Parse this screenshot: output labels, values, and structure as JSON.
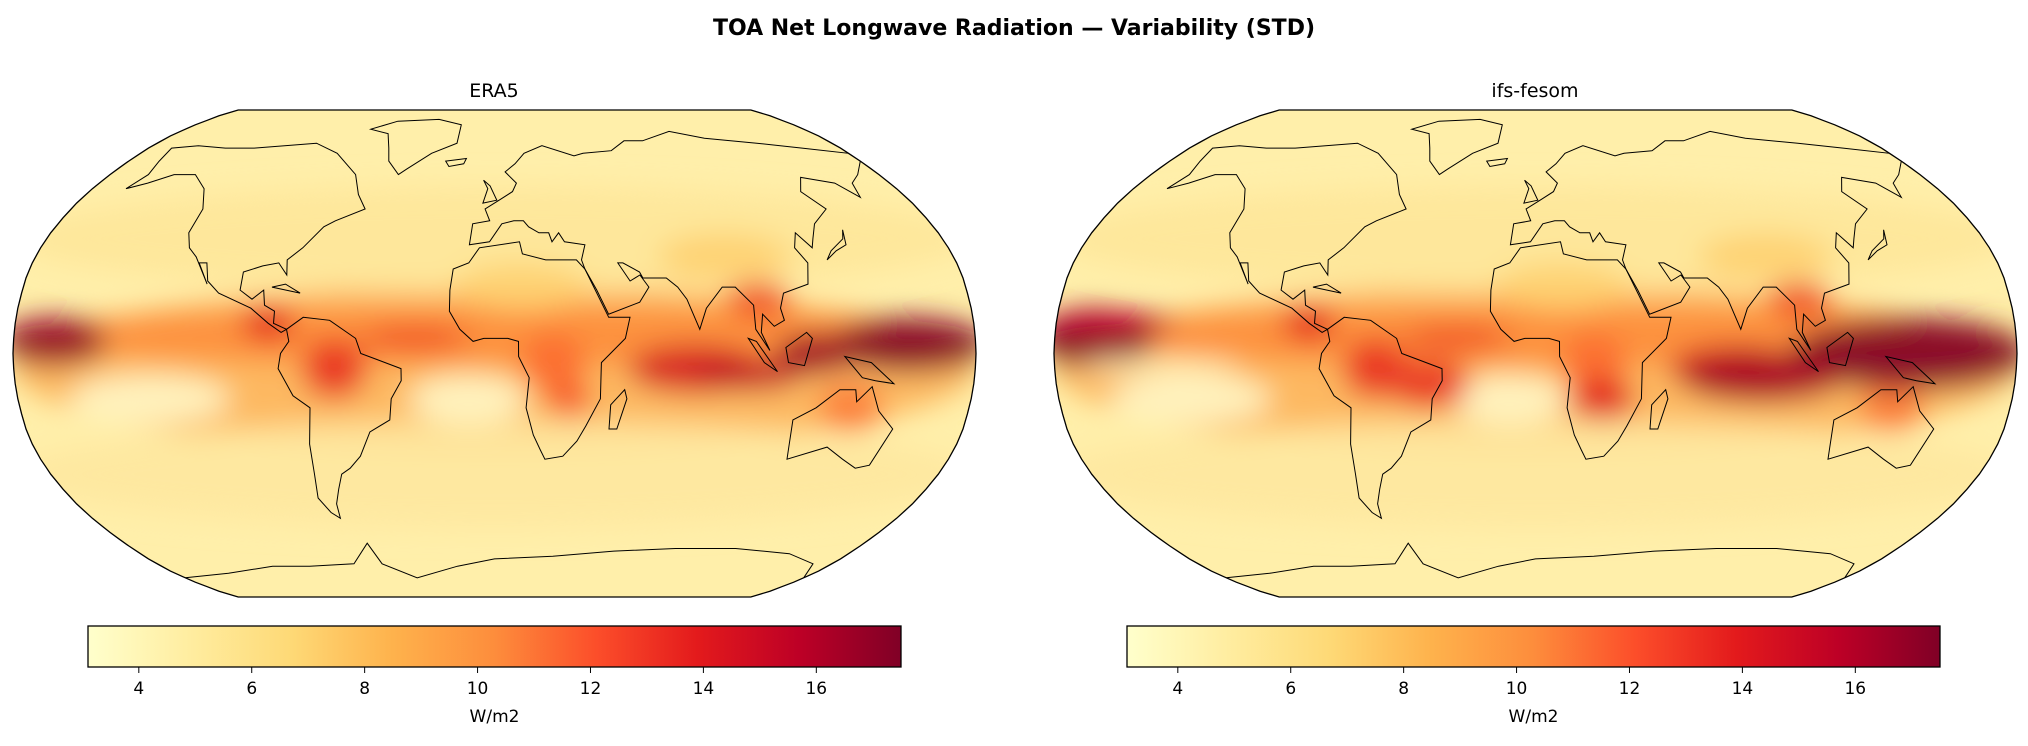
{
  "chart_data": {
    "type": "heatmap",
    "title": "TOA Net Longwave Radiation — Variability (STD)",
    "colormap": "YlOrRd",
    "colormap_stops": [
      "#ffffcc",
      "#ffeda0",
      "#fed976",
      "#feb24c",
      "#fd8d3c",
      "#fc4e2a",
      "#e31a1c",
      "#bd0026",
      "#800026"
    ],
    "projection": "Robinson",
    "panels": [
      {
        "title": "ERA5",
        "colorbar": {
          "label": "W/m2",
          "ticks": [
            "4",
            "6",
            "8",
            "10",
            "12",
            "14",
            "16"
          ],
          "tick_values": [
            4,
            6,
            8,
            10,
            12,
            14,
            16
          ],
          "range": [
            3.1,
            17.5
          ]
        }
      },
      {
        "title": "ifs-fesom",
        "colorbar": {
          "label": "W/m2",
          "ticks": [
            "4",
            "6",
            "8",
            "10",
            "12",
            "14",
            "16"
          ],
          "tick_values": [
            4,
            6,
            8,
            10,
            12,
            14,
            16
          ],
          "range": [
            3.1,
            17.5
          ]
        }
      }
    ]
  }
}
